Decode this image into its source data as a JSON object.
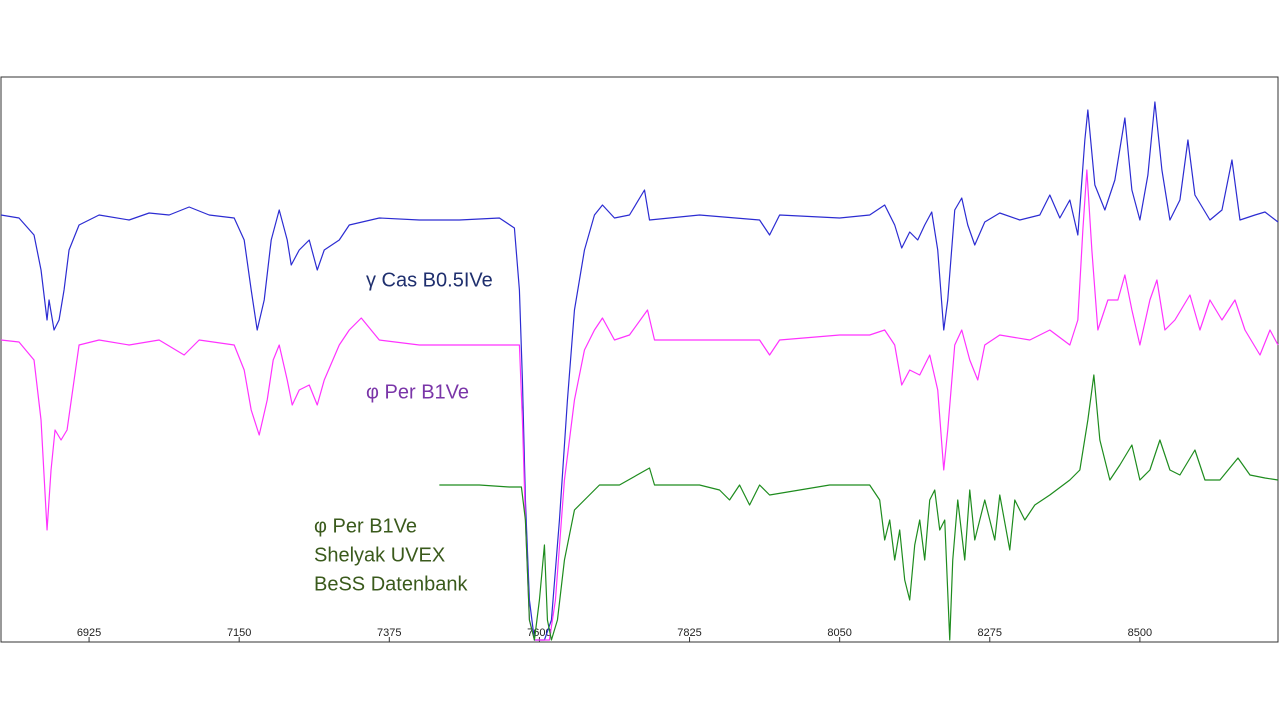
{
  "chart_data": {
    "type": "line",
    "xlim": [
      6793,
      8707
    ],
    "ylim": [
      0,
      565
    ],
    "xticks": [
      6925,
      7150,
      7375,
      7600,
      7825,
      8050,
      8275,
      8500
    ],
    "grid": false,
    "series": [
      {
        "color": "#2c2cd2",
        "x": [
          6793,
          6820,
          6842.5,
          6853,
          6862,
          6865,
          6872.5,
          6880,
          6887.5,
          6895,
          6910,
          6940,
          6985,
          7015,
          7045,
          7075,
          7105,
          7142.5,
          7157.5,
          7168,
          7177,
          7187.5,
          7198,
          7210,
          7222,
          7228,
          7240,
          7255,
          7267,
          7277.5,
          7300,
          7315,
          7360,
          7420,
          7480,
          7540,
          7562.5,
          7570,
          7574.5,
          7579,
          7585,
          7592.5,
          7607.5,
          7618,
          7630,
          7642,
          7652.5,
          7667.5,
          7682.5,
          7694.5,
          7712.5,
          7735,
          7757.5,
          7765,
          7840,
          7930,
          7945,
          7960,
          8050,
          8095,
          8117.5,
          8132.5,
          8143,
          8155,
          8167,
          8177.5,
          8188,
          8197,
          8206,
          8212,
          8222.5,
          8233,
          8242,
          8252.5,
          8267.5,
          8290,
          8320,
          8350,
          8365,
          8380,
          8395,
          8407,
          8417.5,
          8422,
          8432.5,
          8447.5,
          8462.5,
          8477.5,
          8488,
          8500,
          8512,
          8522.5,
          8533,
          8545,
          8560,
          8572,
          8582.5,
          8605,
          8623,
          8638,
          8650,
          8672.5,
          8687.5,
          8707
        ],
        "values": [
          427,
          424,
          407,
          372,
          322,
          342,
          312,
          322,
          352,
          392,
          417,
          427,
          422,
          429,
          427,
          435,
          427,
          424,
          402,
          352,
          312,
          342,
          402,
          432,
          402,
          377,
          392,
          402,
          372,
          392,
          402,
          417,
          424,
          422,
          422,
          424,
          414,
          352,
          262,
          142,
          42,
          2,
          2,
          22,
          122,
          242,
          332,
          392,
          427,
          437,
          424,
          427,
          452,
          422,
          427,
          422,
          407,
          427,
          424,
          427,
          437,
          417,
          394,
          410,
          402,
          417,
          430,
          392,
          312,
          342,
          432,
          444,
          417,
          397,
          420,
          429,
          422,
          427,
          447,
          424,
          442,
          407,
          502,
          532,
          457,
          432,
          462,
          524,
          452,
          422,
          467,
          540,
          472,
          422,
          442,
          502,
          447,
          422,
          432,
          482,
          422,
          427,
          430,
          420
        ]
      },
      {
        "color": "#ff33ff",
        "x": [
          6793,
          6820,
          6842.5,
          6853,
          6862,
          6868,
          6874,
          6883,
          6892,
          6910,
          6940,
          6985,
          7030,
          7067.5,
          7090,
          7142.5,
          7157.5,
          7168,
          7180,
          7192,
          7201,
          7210,
          7222,
          7229.5,
          7240,
          7255,
          7267,
          7277.5,
          7300,
          7315,
          7333,
          7360,
          7420,
          7480,
          7540,
          7570,
          7574.5,
          7579,
          7585,
          7592.5,
          7615,
          7624,
          7637.5,
          7652.5,
          7667.5,
          7682.5,
          7694.5,
          7712.5,
          7735,
          7762,
          7772.5,
          7840,
          7930,
          7945,
          7960,
          8050,
          8095,
          8117.5,
          8132.5,
          8143,
          8155,
          8170,
          8185,
          8197,
          8206,
          8212,
          8222.5,
          8233,
          8245,
          8257,
          8267.5,
          8290,
          8335,
          8365,
          8395,
          8407,
          8414.5,
          8420.5,
          8428,
          8437,
          8452,
          8467,
          8477.5,
          8488,
          8500,
          8515,
          8525.5,
          8537.5,
          8552.5,
          8575,
          8590,
          8605,
          8623,
          8642.5,
          8657.5,
          8680,
          8695,
          8707
        ],
        "values": [
          302,
          300,
          282,
          222,
          112,
          172,
          212,
          202,
          212,
          297,
          302,
          297,
          302,
          287,
          302,
          297,
          272,
          232,
          207,
          242,
          282,
          297,
          262,
          237,
          252,
          257,
          237,
          262,
          297,
          312,
          324,
          302,
          297,
          297,
          297,
          297,
          222,
          122,
          22,
          2,
          2,
          42,
          162,
          242,
          292,
          312,
          324,
          302,
          307,
          332,
          302,
          302,
          302,
          287,
          302,
          307,
          307,
          312,
          297,
          257,
          272,
          267,
          287,
          252,
          172,
          212,
          297,
          312,
          282,
          262,
          297,
          307,
          302,
          312,
          297,
          322,
          412,
          472,
          392,
          312,
          342,
          342,
          367,
          332,
          297,
          342,
          362,
          312,
          322,
          347,
          312,
          342,
          322,
          342,
          312,
          287,
          312,
          297
        ]
      },
      {
        "color": "#1e8c1e",
        "x": [
          7450,
          7510,
          7555,
          7573,
          7579,
          7585,
          7592.5,
          7600,
          7607.5,
          7612,
          7618,
          7627,
          7637.5,
          7652.5,
          7667.5,
          7690,
          7720,
          7765,
          7772.5,
          7840,
          7870,
          7885,
          7900,
          7915,
          7930,
          7945,
          7990,
          8035,
          8095,
          8110,
          8117.5,
          8125,
          8132.5,
          8140,
          8147.5,
          8155,
          8162.5,
          8170,
          8177.5,
          8185,
          8192.5,
          8200,
          8207.5,
          8215,
          8219.5,
          8227,
          8237.5,
          8245,
          8252.5,
          8267.5,
          8282.5,
          8290,
          8305,
          8312.5,
          8327.5,
          8342.5,
          8365,
          8395,
          8410,
          8422,
          8431,
          8440,
          8455,
          8470,
          8488,
          8500,
          8515,
          8530,
          8545,
          8560,
          8582.5,
          8597.5,
          8620,
          8647,
          8665,
          8687.5,
          8707
        ],
        "values": [
          157,
          157,
          155,
          155,
          122,
          22,
          2,
          42,
          97,
          22,
          2,
          22,
          82,
          132,
          142,
          157,
          157,
          174,
          157,
          157,
          152,
          142,
          157,
          137,
          157,
          147,
          152,
          157,
          157,
          142,
          102,
          122,
          82,
          112,
          62,
          42,
          97,
          122,
          82,
          142,
          152,
          112,
          122,
          2,
          82,
          142,
          82,
          152,
          102,
          142,
          102,
          147,
          92,
          142,
          122,
          137,
          147,
          162,
          172,
          222,
          267,
          202,
          162,
          177,
          197,
          162,
          172,
          202,
          172,
          167,
          192,
          162,
          162,
          184,
          167,
          164,
          162
        ]
      }
    ],
    "annotations": [
      {
        "lines": [
          "γ Cas  B0.5IVe"
        ],
        "color": "#1f2f6e"
      },
      {
        "lines": [
          "φ Per  B1Ve"
        ],
        "color": "#7a35a8"
      },
      {
        "lines": [
          "φ   Per  B1Ve",
          "Shelyak UVEX",
          "BeSS Datenbank"
        ],
        "color": "#3a5a1c"
      }
    ]
  }
}
